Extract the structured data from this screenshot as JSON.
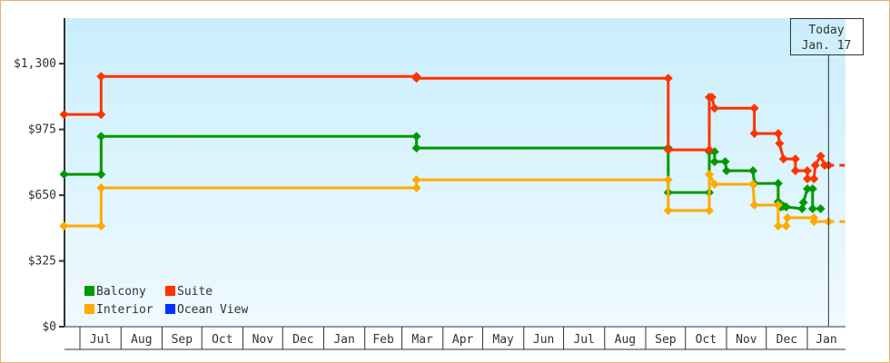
{
  "chart_data": {
    "type": "line",
    "step": true,
    "title": "",
    "xlabel": "",
    "ylabel": "",
    "ylim": [
      0,
      1525
    ],
    "xlim": [
      "2016-06-19",
      "2018-01-31"
    ],
    "y_ticks": [
      {
        "value": 0,
        "label": "$0"
      },
      {
        "value": 325,
        "label": "$325"
      },
      {
        "value": 650,
        "label": "$650"
      },
      {
        "value": 975,
        "label": "$975"
      },
      {
        "value": 1300,
        "label": "$1,300"
      }
    ],
    "x_ticks": [
      {
        "start": "2016-07-01",
        "label": "Jul"
      },
      {
        "start": "2016-08-01",
        "label": "Aug"
      },
      {
        "start": "2016-09-01",
        "label": "Sep"
      },
      {
        "start": "2016-10-01",
        "label": "Oct"
      },
      {
        "start": "2016-11-01",
        "label": "Nov"
      },
      {
        "start": "2016-12-01",
        "label": "Dec"
      },
      {
        "start": "2017-01-01",
        "label": "Jan"
      },
      {
        "start": "2017-02-01",
        "label": "Feb"
      },
      {
        "start": "2017-03-01",
        "label": "Mar"
      },
      {
        "start": "2017-04-01",
        "label": "Apr"
      },
      {
        "start": "2017-05-01",
        "label": "May"
      },
      {
        "start": "2017-06-01",
        "label": "Jun"
      },
      {
        "start": "2017-07-01",
        "label": "Jul"
      },
      {
        "start": "2017-08-01",
        "label": "Aug"
      },
      {
        "start": "2017-09-01",
        "label": "Sep"
      },
      {
        "start": "2017-10-01",
        "label": "Oct"
      },
      {
        "start": "2017-11-01",
        "label": "Nov"
      },
      {
        "start": "2017-12-01",
        "label": "Dec"
      },
      {
        "start": "2018-01-01",
        "label": "Jan"
      }
    ],
    "today": {
      "date": "2018-01-17",
      "label_line1": "Today",
      "label_line2": "Jan. 17"
    },
    "legend": {
      "placement": "bottom-left"
    },
    "series": [
      {
        "name": "Balcony",
        "color": "#009900",
        "projection_to": null,
        "points": [
          [
            "2016-06-19",
            753
          ],
          [
            "2016-07-17",
            753
          ],
          [
            "2016-07-17",
            941
          ],
          [
            "2017-03-12",
            941
          ],
          [
            "2017-03-12",
            883
          ],
          [
            "2017-09-18",
            883
          ],
          [
            "2017-09-18",
            663
          ],
          [
            "2017-10-19",
            663
          ],
          [
            "2017-10-19",
            865
          ],
          [
            "2017-10-23",
            865
          ],
          [
            "2017-10-23",
            816
          ],
          [
            "2017-10-31",
            816
          ],
          [
            "2017-11-01",
            771
          ],
          [
            "2017-11-21",
            771
          ],
          [
            "2017-11-22",
            708
          ],
          [
            "2017-12-10",
            708
          ],
          [
            "2017-12-10",
            618
          ],
          [
            "2017-12-12",
            592
          ],
          [
            "2017-12-14",
            596
          ],
          [
            "2017-12-16",
            592
          ],
          [
            "2017-12-28",
            583
          ],
          [
            "2017-12-29",
            614
          ],
          [
            "2018-01-01",
            681
          ],
          [
            "2018-01-05",
            681
          ],
          [
            "2018-01-05",
            583
          ],
          [
            "2018-01-11",
            583
          ]
        ]
      },
      {
        "name": "Suite",
        "color": "#ff3300",
        "projection_to": "2018-01-31",
        "points": [
          [
            "2016-06-19",
            1049
          ],
          [
            "2016-07-17",
            1049
          ],
          [
            "2016-07-17",
            1237
          ],
          [
            "2017-03-12",
            1237
          ],
          [
            "2017-03-12",
            1228
          ],
          [
            "2017-09-18",
            1228
          ],
          [
            "2017-09-18",
            874
          ],
          [
            "2017-10-19",
            874
          ],
          [
            "2017-10-19",
            1134
          ],
          [
            "2017-10-21",
            1134
          ],
          [
            "2017-10-23",
            1080
          ],
          [
            "2017-11-22",
            1080
          ],
          [
            "2017-11-22",
            955
          ],
          [
            "2017-12-10",
            955
          ],
          [
            "2017-12-11",
            906
          ],
          [
            "2017-12-14",
            829
          ],
          [
            "2017-12-23",
            829
          ],
          [
            "2017-12-23",
            771
          ],
          [
            "2018-01-01",
            771
          ],
          [
            "2018-01-01",
            731
          ],
          [
            "2018-01-06",
            731
          ],
          [
            "2018-01-07",
            798
          ],
          [
            "2018-01-11",
            843
          ],
          [
            "2018-01-14",
            798
          ],
          [
            "2018-01-17",
            798
          ]
        ]
      },
      {
        "name": "Interior",
        "color": "#ffaa00",
        "projection_to": "2018-01-31",
        "points": [
          [
            "2016-06-19",
            498
          ],
          [
            "2016-07-17",
            498
          ],
          [
            "2016-07-17",
            686
          ],
          [
            "2017-03-12",
            686
          ],
          [
            "2017-03-12",
            726
          ],
          [
            "2017-09-18",
            726
          ],
          [
            "2017-09-18",
            574
          ],
          [
            "2017-10-19",
            574
          ],
          [
            "2017-10-19",
            753
          ],
          [
            "2017-10-23",
            704
          ],
          [
            "2017-11-21",
            704
          ],
          [
            "2017-11-22",
            601
          ],
          [
            "2017-12-10",
            601
          ],
          [
            "2017-12-10",
            498
          ],
          [
            "2017-12-16",
            498
          ],
          [
            "2017-12-17",
            538
          ],
          [
            "2018-01-06",
            538
          ],
          [
            "2018-01-06",
            520
          ],
          [
            "2018-01-17",
            520
          ]
        ]
      },
      {
        "name": "Ocean View",
        "color": "#0033ff",
        "projection_to": null,
        "points": []
      }
    ]
  }
}
